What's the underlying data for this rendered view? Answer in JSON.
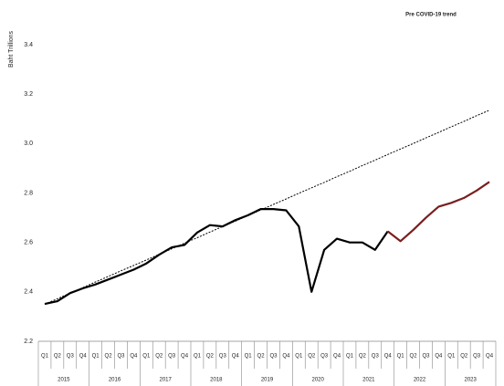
{
  "chart_data": {
    "type": "line",
    "y_label": "Baht Trillions",
    "categories": [
      "Q1",
      "Q2",
      "Q3",
      "Q4",
      "Q1",
      "Q2",
      "Q3",
      "Q4",
      "Q1",
      "Q2",
      "Q3",
      "Q4",
      "Q1",
      "Q2",
      "Q3",
      "Q4",
      "Q1",
      "Q2",
      "Q3",
      "Q4",
      "Q1",
      "Q2",
      "Q3",
      "Q4",
      "Q1",
      "Q2",
      "Q3",
      "Q4",
      "Q1",
      "Q2",
      "Q3",
      "Q4",
      "Q1",
      "Q2",
      "Q3",
      "Q4"
    ],
    "years": [
      "2015",
      "2016",
      "2017",
      "2018",
      "2019",
      "2020",
      "2021",
      "2022",
      "2023"
    ],
    "series": [
      {
        "color": "#000000",
        "style": "solid",
        "values": [
          2.351,
          2.362,
          2.395,
          2.414,
          2.43,
          2.45,
          2.47,
          2.49,
          2.515,
          2.55,
          2.58,
          2.59,
          2.64,
          2.67,
          2.665,
          2.69,
          2.71,
          2.735,
          2.735,
          2.73,
          2.665,
          2.4,
          2.57,
          2.615,
          2.6,
          2.6,
          2.57,
          2.645,
          null,
          null,
          null,
          null,
          null,
          null,
          null,
          null
        ]
      },
      {
        "color": "#7b1f1f",
        "style": "solid",
        "values": [
          null,
          null,
          null,
          null,
          null,
          null,
          null,
          null,
          null,
          null,
          null,
          null,
          null,
          null,
          null,
          null,
          null,
          null,
          null,
          null,
          null,
          null,
          null,
          null,
          null,
          null,
          null,
          2.645,
          2.605,
          2.65,
          2.7,
          2.745,
          2.76,
          2.78,
          2.81,
          2.845
        ]
      },
      {
        "name": "Pre COVID-19 trend",
        "color": "#000000",
        "style": "dotted",
        "values": [
          2.35,
          2.372,
          2.395,
          2.417,
          2.44,
          2.462,
          2.485,
          2.507,
          2.529,
          2.552,
          2.574,
          2.597,
          2.619,
          2.642,
          2.664,
          2.686,
          2.709,
          2.731,
          2.754,
          2.776,
          2.799,
          2.821,
          2.843,
          2.866,
          2.888,
          2.911,
          2.933,
          2.956,
          2.978,
          3.0,
          3.023,
          3.045,
          3.068,
          3.09,
          3.113,
          3.135
        ]
      }
    ],
    "ylim": [
      2.2,
      3.4
    ],
    "yticks": [
      2.2,
      2.4,
      2.6,
      2.8,
      {
        "value": 3,
        "label": "3.0"
      },
      3.2,
      3.4
    ],
    "grid": false
  }
}
